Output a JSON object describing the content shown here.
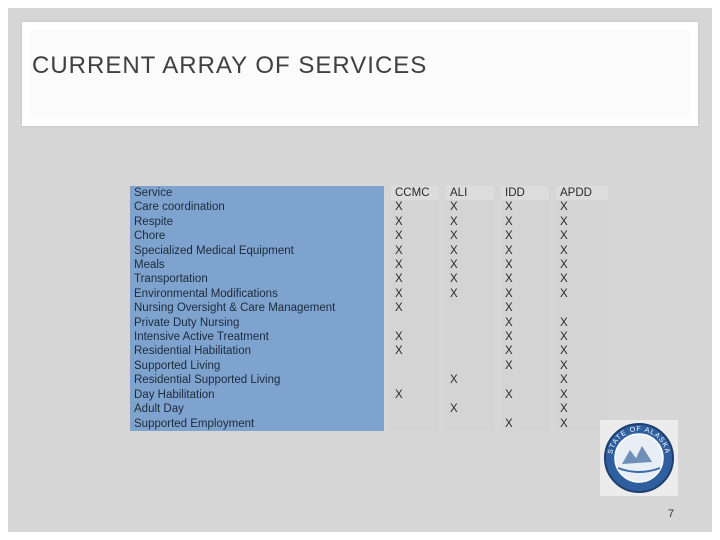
{
  "slide": {
    "title": "CURRENT ARRAY OF SERVICES",
    "page_number": "7"
  },
  "table": {
    "headers": [
      "Service",
      "CCMC",
      "ALI",
      "IDD",
      "APDD"
    ],
    "rows": [
      [
        "Care coordination",
        "X",
        "X",
        "X",
        "X"
      ],
      [
        "Respite",
        "X",
        "X",
        "X",
        "X"
      ],
      [
        "Chore",
        "X",
        "X",
        "X",
        "X"
      ],
      [
        "Specialized Medical Equipment",
        "X",
        "X",
        "X",
        "X"
      ],
      [
        "Meals",
        "X",
        "X",
        "X",
        "X"
      ],
      [
        "Transportation",
        "X",
        "X",
        "X",
        "X"
      ],
      [
        "Environmental Modifications",
        "X",
        "X",
        "X",
        "X"
      ],
      [
        "Nursing Oversight & Care Management",
        "X",
        "",
        "X",
        ""
      ],
      [
        "Private Duty Nursing",
        "",
        "",
        "X",
        "X"
      ],
      [
        "Intensive Active Treatment",
        "X",
        "",
        "X",
        "X"
      ],
      [
        "Residential Habilitation",
        "X",
        "",
        "X",
        "X"
      ],
      [
        "Supported Living",
        "",
        "",
        "X",
        "X"
      ],
      [
        "Residential Supported Living",
        "",
        "X",
        "",
        "X"
      ],
      [
        "Day Habilitation",
        "X",
        "",
        "X",
        "X"
      ],
      [
        "Adult Day",
        "",
        "X",
        "",
        "X"
      ],
      [
        "Supported Employment",
        "",
        "",
        "X",
        "X"
      ]
    ]
  },
  "seal": {
    "icon": "state-of-alaska-seal-icon",
    "text": "STATE OF ALASKA"
  }
}
